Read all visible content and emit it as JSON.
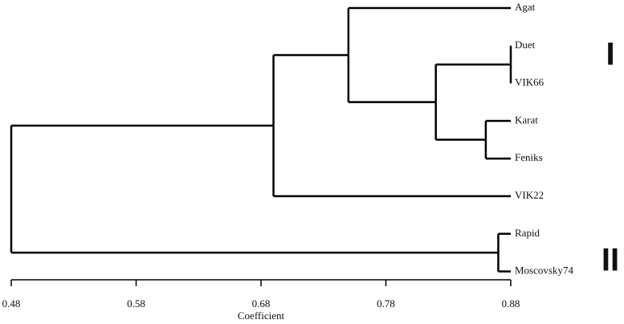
{
  "chart_data": {
    "type": "dendrogram",
    "x_label": "Coefficient",
    "xlim": [
      0.48,
      0.88
    ],
    "xticks": [
      0.48,
      0.58,
      0.68,
      0.78,
      0.88
    ],
    "color": "#000000",
    "tree": {
      "height": 0.48,
      "children": [
        {
          "height": 0.69,
          "children": [
            {
              "height": 0.75,
              "children": [
                {
                  "label": "Agat"
                },
                {
                  "height": 0.82,
                  "children": [
                    {
                      "height": 0.88,
                      "children": [
                        {
                          "label": "Duet"
                        },
                        {
                          "label": "VIK66"
                        }
                      ]
                    },
                    {
                      "height": 0.86,
                      "children": [
                        {
                          "label": "Karat"
                        },
                        {
                          "label": "Feniks"
                        }
                      ]
                    }
                  ]
                }
              ]
            },
            {
              "label": "VIK22"
            }
          ]
        },
        {
          "height": 0.87,
          "children": [
            {
              "label": "Rapid"
            },
            {
              "label": "Moscovsky74"
            }
          ]
        }
      ]
    },
    "groups": [
      {
        "label": "I"
      },
      {
        "label": "II"
      }
    ]
  }
}
